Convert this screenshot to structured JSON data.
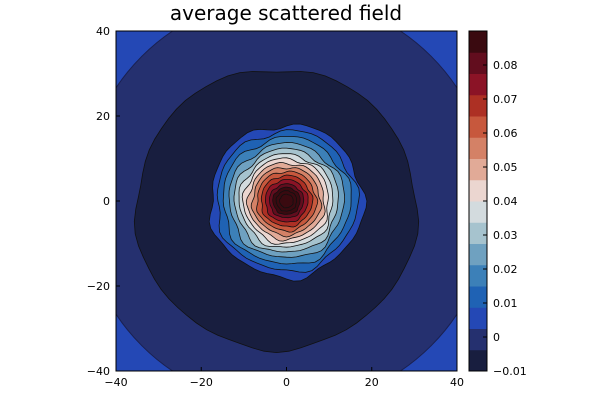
{
  "chart_data": {
    "type": "heatmap",
    "subtype": "filled-contour",
    "title": "average scattered field",
    "xlabel": "",
    "ylabel": "",
    "xlim": [
      -40,
      40
    ],
    "ylim": [
      -40,
      40
    ],
    "xticks": [
      -40,
      -20,
      0,
      20,
      40
    ],
    "yticks": [
      -40,
      -20,
      0,
      20,
      40
    ],
    "grid": false,
    "colorbar": {
      "placement": "right",
      "range": [
        -0.01,
        0.09
      ],
      "ticks": [
        -0.01,
        0,
        0.01,
        0.02,
        0.03,
        0.04,
        0.05,
        0.06,
        0.07,
        0.08
      ],
      "tick_labels": [
        "−0.01",
        "0",
        "0.01",
        "0.02",
        "0.03",
        "0.04",
        "0.05",
        "0.06",
        "0.07",
        "0.08"
      ],
      "level_step": 0.005,
      "colors": [
        "#181e3f",
        "#25306f",
        "#2448b5",
        "#1f62b4",
        "#3c80b8",
        "#6fa1c0",
        "#a6c3ce",
        "#d3dbde",
        "#ebd6d0",
        "#e1aa97",
        "#d48166",
        "#c7583d",
        "#ad3024",
        "#8b1326",
        "#620d1e",
        "#3a0a10"
      ]
    },
    "contour_levels": [
      {
        "level": -0.005,
        "radius": 33
      },
      {
        "level": 0.005,
        "radius": 18
      },
      {
        "level": 0.01,
        "radius": 16.5
      },
      {
        "level": 0.015,
        "radius": 15
      },
      {
        "level": 0.02,
        "radius": 13.5
      },
      {
        "level": 0.025,
        "radius": 12.2
      },
      {
        "level": 0.03,
        "radius": 11
      },
      {
        "level": 0.035,
        "radius": 10
      },
      {
        "level": 0.04,
        "radius": 9
      },
      {
        "level": 0.045,
        "radius": 8
      },
      {
        "level": 0.05,
        "radius": 7
      },
      {
        "level": 0.055,
        "radius": 6
      },
      {
        "level": 0.06,
        "radius": 5
      },
      {
        "level": 0.065,
        "radius": 4
      },
      {
        "level": 0.07,
        "radius": 3.2
      },
      {
        "level": 0.075,
        "radius": 2.4
      },
      {
        "level": 0.08,
        "radius": 1.6
      }
    ],
    "outer_band": {
      "level": 0,
      "radius": 48
    }
  }
}
